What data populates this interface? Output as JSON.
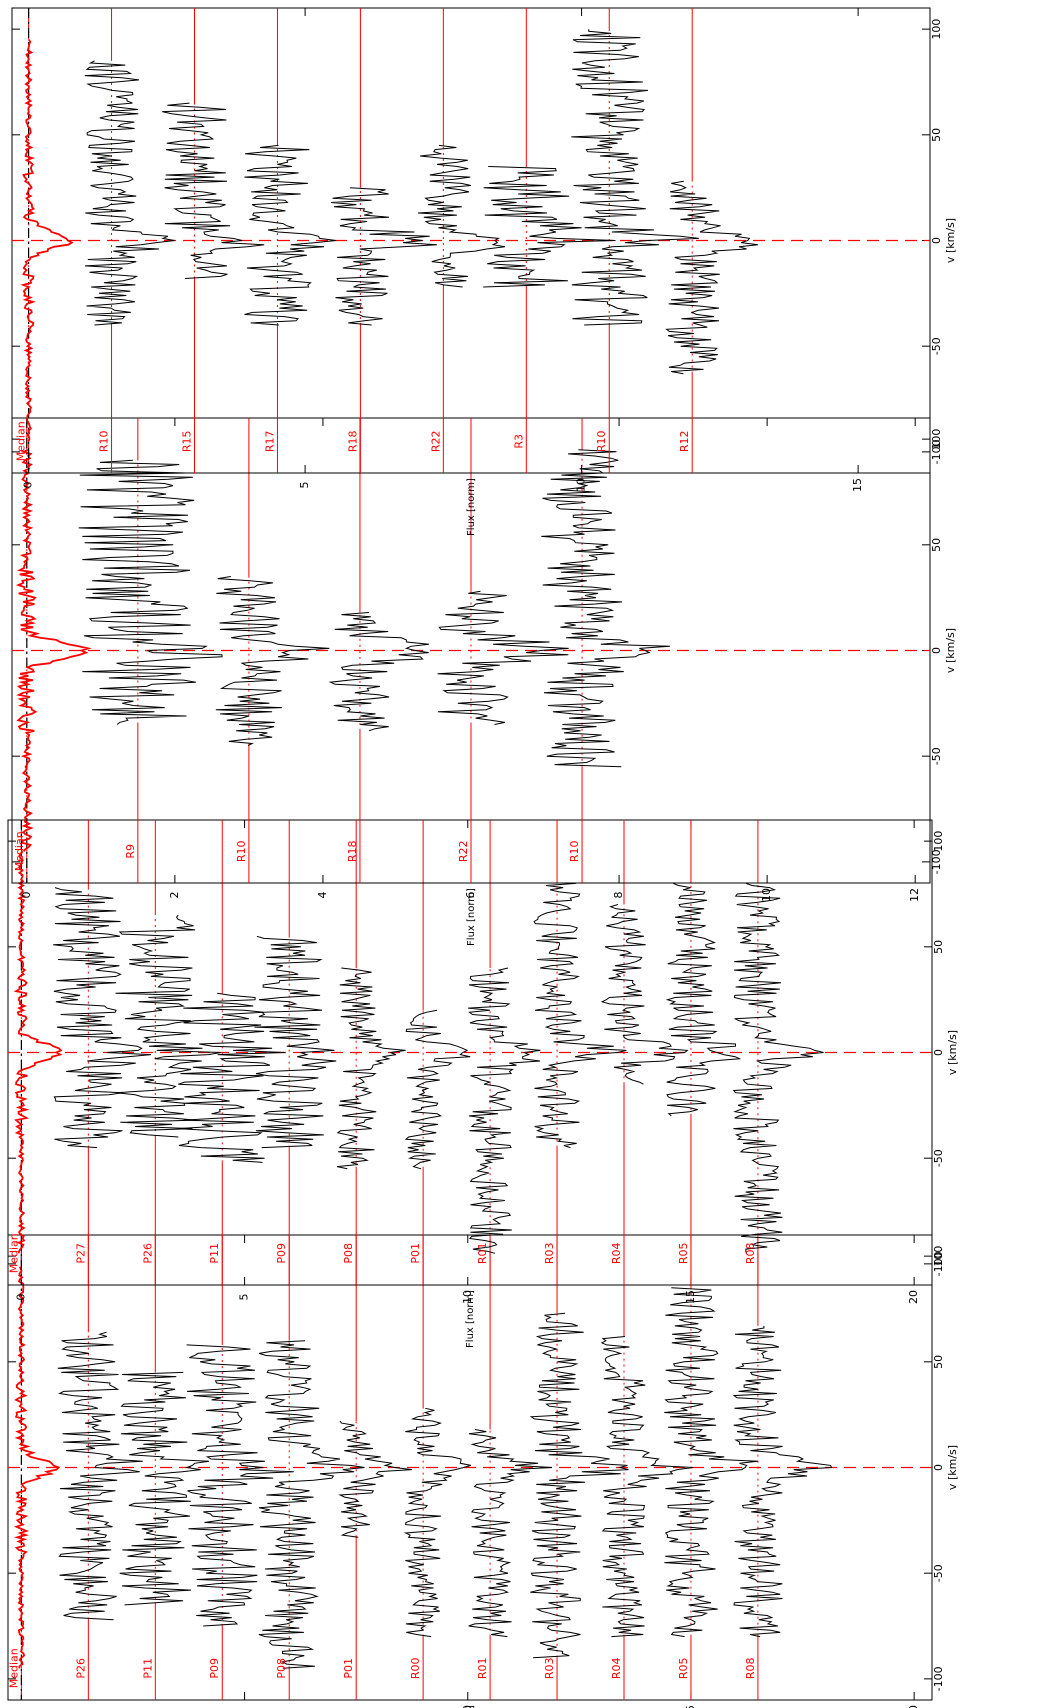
{
  "chart_data": {
    "type": "line",
    "orientation": "rotated-90-ccw",
    "grid": false,
    "legend": "none",
    "colors": {
      "spectrum": "#000000",
      "label": "#ff0000",
      "median": "#ff0000",
      "zero_line": "#ff0000",
      "baseline": "#ff0000"
    },
    "panels": [
      {
        "id": "panel-1",
        "xlabel": "v [km/s]",
        "ylabel": "Flux [norm]",
        "xlim": [
          -110,
          110
        ],
        "ylim": [
          -0.3,
          20.4
        ],
        "xticks": [
          -100,
          -50,
          0,
          50,
          100
        ],
        "yticks": [
          0,
          5,
          10,
          15,
          20
        ],
        "zero_line": 0,
        "spectra": [
          {
            "label": "R08",
            "offset": 16.5,
            "vmin": -80,
            "vmax": 67,
            "peak": 1.2,
            "noise": 0.55,
            "seed": 1
          },
          {
            "label": "R05",
            "offset": 15.0,
            "vmin": -80,
            "vmax": 85,
            "peak": 1.3,
            "noise": 0.6,
            "seed": 2
          },
          {
            "label": "R04",
            "offset": 13.5,
            "vmin": -80,
            "vmax": 62,
            "peak": 1.1,
            "noise": 0.5,
            "seed": 3
          },
          {
            "label": "R03",
            "offset": 12.0,
            "vmin": -90,
            "vmax": 73,
            "peak": 1.2,
            "noise": 0.6,
            "seed": 4
          },
          {
            "label": "R01",
            "offset": 10.5,
            "vmin": -80,
            "vmax": 18,
            "peak": 0.9,
            "noise": 0.5,
            "seed": 5
          },
          {
            "label": "R00",
            "offset": 9.0,
            "vmin": -80,
            "vmax": 28,
            "peak": 0.9,
            "noise": 0.4,
            "seed": 6
          },
          {
            "label": "P01",
            "offset": 7.5,
            "vmin": -33,
            "vmax": 22,
            "peak": 0.9,
            "noise": 0.4,
            "seed": 7
          },
          {
            "label": "P08",
            "offset": 6.0,
            "vmin": -95,
            "vmax": 60,
            "peak": 1.0,
            "noise": 0.7,
            "seed": 8
          },
          {
            "label": "P09",
            "offset": 4.5,
            "vmin": -75,
            "vmax": 58,
            "peak": 1.0,
            "noise": 0.8,
            "seed": 9
          },
          {
            "label": "P11",
            "offset": 3.0,
            "vmin": -65,
            "vmax": 45,
            "peak": 0.9,
            "noise": 0.8,
            "seed": 10
          },
          {
            "label": "P26",
            "offset": 1.5,
            "vmin": -72,
            "vmax": 64,
            "peak": 0.8,
            "noise": 0.7,
            "seed": 11
          }
        ],
        "median": {
          "label": "Median",
          "offset": 0.0,
          "vmin": -95,
          "vmax": 95,
          "peak": 0.75,
          "noise": 0.12,
          "seed": 12
        }
      },
      {
        "id": "panel-2",
        "xlabel": "v [km/s]",
        "ylabel": "Flux [norm]",
        "xlim": [
          -110,
          110
        ],
        "ylim": [
          -0.3,
          20.4
        ],
        "xticks": [
          -100,
          -50,
          0,
          50,
          100
        ],
        "yticks": [
          0,
          5,
          10,
          15,
          20
        ],
        "zero_line": 0,
        "spectra": [
          {
            "label": "R08",
            "offset": 16.5,
            "vmin": -95,
            "vmax": 80,
            "peak": 1.0,
            "noise": 0.55,
            "seed": 21
          },
          {
            "label": "R05",
            "offset": 15.0,
            "vmin": -30,
            "vmax": 80,
            "peak": 1.0,
            "noise": 0.55,
            "seed": 22
          },
          {
            "label": "R04",
            "offset": 13.5,
            "vmin": -15,
            "vmax": 70,
            "peak": 1.1,
            "noise": 0.5,
            "seed": 23
          },
          {
            "label": "R03",
            "offset": 12.0,
            "vmin": -45,
            "vmax": 80,
            "peak": 1.1,
            "noise": 0.55,
            "seed": 24
          },
          {
            "label": "R01",
            "offset": 10.5,
            "vmin": -95,
            "vmax": 40,
            "peak": 1.2,
            "noise": 0.5,
            "seed": 25
          },
          {
            "label": "P01",
            "offset": 9.0,
            "vmin": -55,
            "vmax": 20,
            "peak": 0.9,
            "noise": 0.4,
            "seed": 26
          },
          {
            "label": "P08",
            "offset": 7.5,
            "vmin": -55,
            "vmax": 40,
            "peak": 0.9,
            "noise": 0.45,
            "seed": 27
          },
          {
            "label": "P09",
            "offset": 6.0,
            "vmin": -45,
            "vmax": 55,
            "peak": 1.0,
            "noise": 0.8,
            "seed": 28
          },
          {
            "label": "P11",
            "offset": 4.5,
            "vmin": -52,
            "vmax": 28,
            "peak": 0.9,
            "noise": 1.0,
            "seed": 29
          },
          {
            "label": "P26",
            "offset": 3.0,
            "vmin": -40,
            "vmax": 65,
            "peak": 0.8,
            "noise": 0.9,
            "seed": 30
          },
          {
            "label": "P27",
            "offset": 1.5,
            "vmin": -45,
            "vmax": 78,
            "peak": 0.8,
            "noise": 0.8,
            "seed": 31
          }
        ],
        "median": {
          "label": "Median",
          "offset": 0.0,
          "vmin": -95,
          "vmax": 95,
          "peak": 0.9,
          "noise": 0.12,
          "seed": 32
        }
      },
      {
        "id": "panel-3",
        "xlabel": "v [km/s]",
        "ylabel": "Flux [norm]",
        "xlim": [
          -110,
          110
        ],
        "ylim": [
          -0.2,
          12.2
        ],
        "xticks": [
          -100,
          -50,
          0,
          50,
          100
        ],
        "yticks": [
          0,
          2,
          4,
          6,
          8,
          10,
          12
        ],
        "zero_line": 0,
        "spectra": [
          {
            "label": "R10",
            "offset": 7.5,
            "vmin": -55,
            "vmax": 95,
            "peak": 0.9,
            "noise": 0.55,
            "seed": 41
          },
          {
            "label": "R22",
            "offset": 6.0,
            "vmin": -35,
            "vmax": 28,
            "peak": 1.1,
            "noise": 0.5,
            "seed": 42
          },
          {
            "label": "R18",
            "offset": 4.5,
            "vmin": -38,
            "vmax": 18,
            "peak": 1.0,
            "noise": 0.4,
            "seed": 43
          },
          {
            "label": "R10",
            "offset": 3.0,
            "vmin": -45,
            "vmax": 35,
            "peak": 0.8,
            "noise": 0.45,
            "seed": 44
          },
          {
            "label": "R9",
            "offset": 1.5,
            "vmin": -35,
            "vmax": 90,
            "peak": 0.5,
            "noise": 0.8,
            "seed": 45
          }
        ],
        "median": {
          "label": "Median",
          "offset": 0.0,
          "vmin": -95,
          "vmax": 95,
          "peak": 0.8,
          "noise": 0.12,
          "seed": 46
        }
      },
      {
        "id": "panel-4",
        "xlabel": "v [km/s]",
        "ylabel": "Flux [norm]",
        "xlim": [
          -110,
          110
        ],
        "ylim": [
          -0.3,
          16.3
        ],
        "xticks": [
          -100,
          -50,
          0,
          50,
          100
        ],
        "yticks": [
          0,
          5,
          10,
          15
        ],
        "zero_line": 0,
        "spectra": [
          {
            "label": "R12",
            "offset": 12.0,
            "vmin": -63,
            "vmax": 28,
            "peak": 1.0,
            "noise": 0.5,
            "seed": 51
          },
          {
            "label": "R10",
            "offset": 10.5,
            "vmin": -40,
            "vmax": 100,
            "peak": 1.0,
            "noise": 0.7,
            "seed": 52
          },
          {
            "label": "R3",
            "offset": 9.0,
            "vmin": -22,
            "vmax": 35,
            "peak": 0.9,
            "noise": 0.8,
            "seed": 53
          },
          {
            "label": "R22",
            "offset": 7.5,
            "vmin": -22,
            "vmax": 45,
            "peak": 0.9,
            "noise": 0.5,
            "seed": 54
          },
          {
            "label": "R18",
            "offset": 6.0,
            "vmin": -40,
            "vmax": 25,
            "peak": 1.0,
            "noise": 0.55,
            "seed": 55
          },
          {
            "label": "R17",
            "offset": 4.5,
            "vmin": -40,
            "vmax": 45,
            "peak": 0.8,
            "noise": 0.6,
            "seed": 56
          },
          {
            "label": "R15",
            "offset": 3.0,
            "vmin": -18,
            "vmax": 65,
            "peak": 0.8,
            "noise": 0.6,
            "seed": 57
          },
          {
            "label": "R10",
            "offset": 1.5,
            "vmin": -40,
            "vmax": 85,
            "peak": 0.7,
            "noise": 0.5,
            "seed": 58
          }
        ],
        "median": {
          "label": "Median",
          "offset": 0.0,
          "vmin": -95,
          "vmax": 95,
          "peak": 0.75,
          "noise": 0.1,
          "seed": 59
        }
      }
    ]
  }
}
